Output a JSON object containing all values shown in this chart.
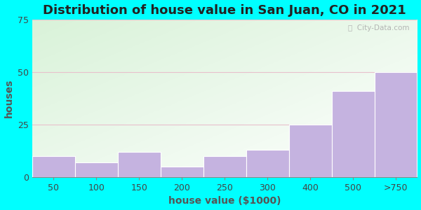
{
  "title": "Distribution of house value in San Juan, CO in 2021",
  "xlabel": "house value ($1000)",
  "ylabel": "houses",
  "categories": [
    "50",
    "100",
    "150",
    "200",
    "250",
    "300",
    "400",
    "500",
    ">750"
  ],
  "values": [
    10,
    7,
    12,
    5,
    10,
    13,
    25,
    41,
    50
  ],
  "bar_color": "#c5b3e0",
  "bar_edge_color": "#c5b3e0",
  "ylim": [
    0,
    75
  ],
  "yticks": [
    0,
    25,
    50,
    75
  ],
  "bg_outer": "#00ffff",
  "grid_color": "#e8c0cc",
  "title_fontsize": 13,
  "axis_label_fontsize": 10,
  "tick_fontsize": 9,
  "watermark_text": "ⓘ  City-Data.com"
}
